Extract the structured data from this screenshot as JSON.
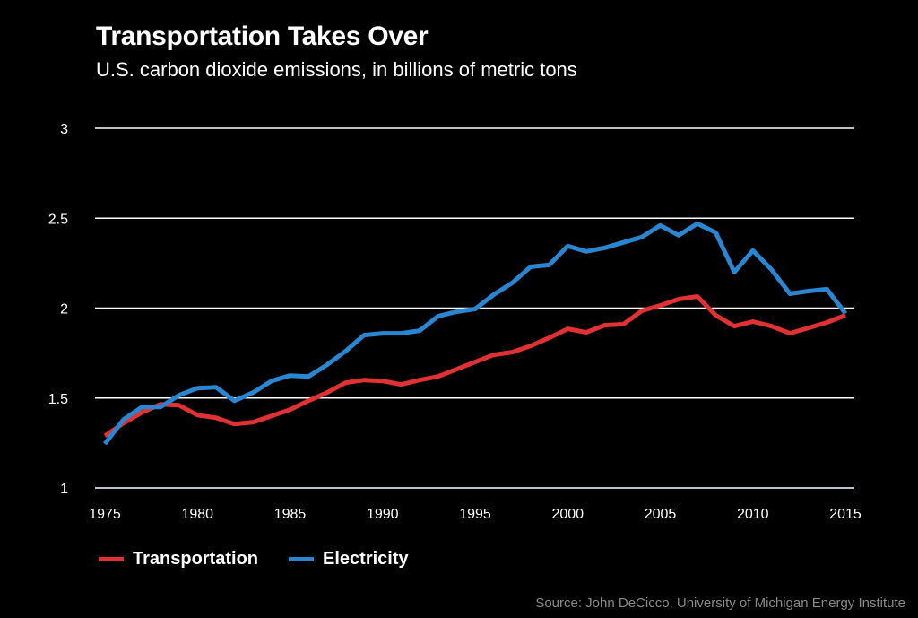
{
  "header": {
    "title": "Transportation Takes Over",
    "subtitle": "U.S. carbon dioxide emissions, in billions of metric tons"
  },
  "colors": {
    "background": "#000000",
    "transportation": "#e03232",
    "electricity": "#2a86d0",
    "grid": "#ffffff",
    "axis": "#b8c4cc",
    "source_text": "#8a8a8a"
  },
  "legend": {
    "items": [
      {
        "label": "Transportation",
        "color": "#e03232"
      },
      {
        "label": "Electricity",
        "color": "#2a86d0"
      }
    ]
  },
  "source": "Source: John DeCicco, University of Michigan Energy Institute",
  "chart_data": {
    "type": "line",
    "title": "Transportation Takes Over",
    "subtitle": "U.S. carbon dioxide emissions, in billions of metric tons",
    "xlabel": "",
    "ylabel": "",
    "xlim": [
      1975,
      2015
    ],
    "ylim": [
      1,
      3
    ],
    "x_ticks": [
      1975,
      1980,
      1985,
      1990,
      1995,
      2000,
      2005,
      2010,
      2015
    ],
    "y_ticks": [
      1,
      1.5,
      2,
      2.5,
      3
    ],
    "y_tick_labels": [
      "1",
      "1.5",
      "2",
      "2.5",
      "3"
    ],
    "grid": "horizontal",
    "legend_position": "bottom-left",
    "x": [
      1975,
      1976,
      1977,
      1978,
      1979,
      1980,
      1981,
      1982,
      1983,
      1984,
      1985,
      1986,
      1987,
      1988,
      1989,
      1990,
      1991,
      1992,
      1993,
      1994,
      1995,
      1996,
      1997,
      1998,
      1999,
      2000,
      2001,
      2002,
      2003,
      2004,
      2005,
      2006,
      2007,
      2008,
      2009,
      2010,
      2011,
      2012,
      2013,
      2014,
      2015
    ],
    "series": [
      {
        "name": "Transportation",
        "color": "#e03232",
        "values": [
          1.29,
          1.36,
          1.42,
          1.465,
          1.46,
          1.405,
          1.39,
          1.355,
          1.365,
          1.4,
          1.435,
          1.485,
          1.53,
          1.585,
          1.6,
          1.595,
          1.575,
          1.6,
          1.62,
          1.66,
          1.7,
          1.74,
          1.755,
          1.79,
          1.835,
          1.885,
          1.865,
          1.905,
          1.91,
          1.985,
          2.015,
          2.05,
          2.065,
          1.96,
          1.9,
          1.925,
          1.9,
          1.86,
          1.89,
          1.92,
          1.96
        ]
      },
      {
        "name": "Electricity",
        "color": "#2a86d0",
        "values": [
          1.245,
          1.38,
          1.45,
          1.45,
          1.515,
          1.555,
          1.56,
          1.485,
          1.53,
          1.595,
          1.625,
          1.62,
          1.685,
          1.76,
          1.85,
          1.86,
          1.86,
          1.875,
          1.955,
          1.98,
          1.995,
          2.075,
          2.14,
          2.23,
          2.24,
          2.345,
          2.315,
          2.335,
          2.365,
          2.395,
          2.46,
          2.405,
          2.47,
          2.42,
          2.2,
          2.32,
          2.215,
          2.08,
          2.095,
          2.105,
          1.97
        ]
      }
    ]
  }
}
